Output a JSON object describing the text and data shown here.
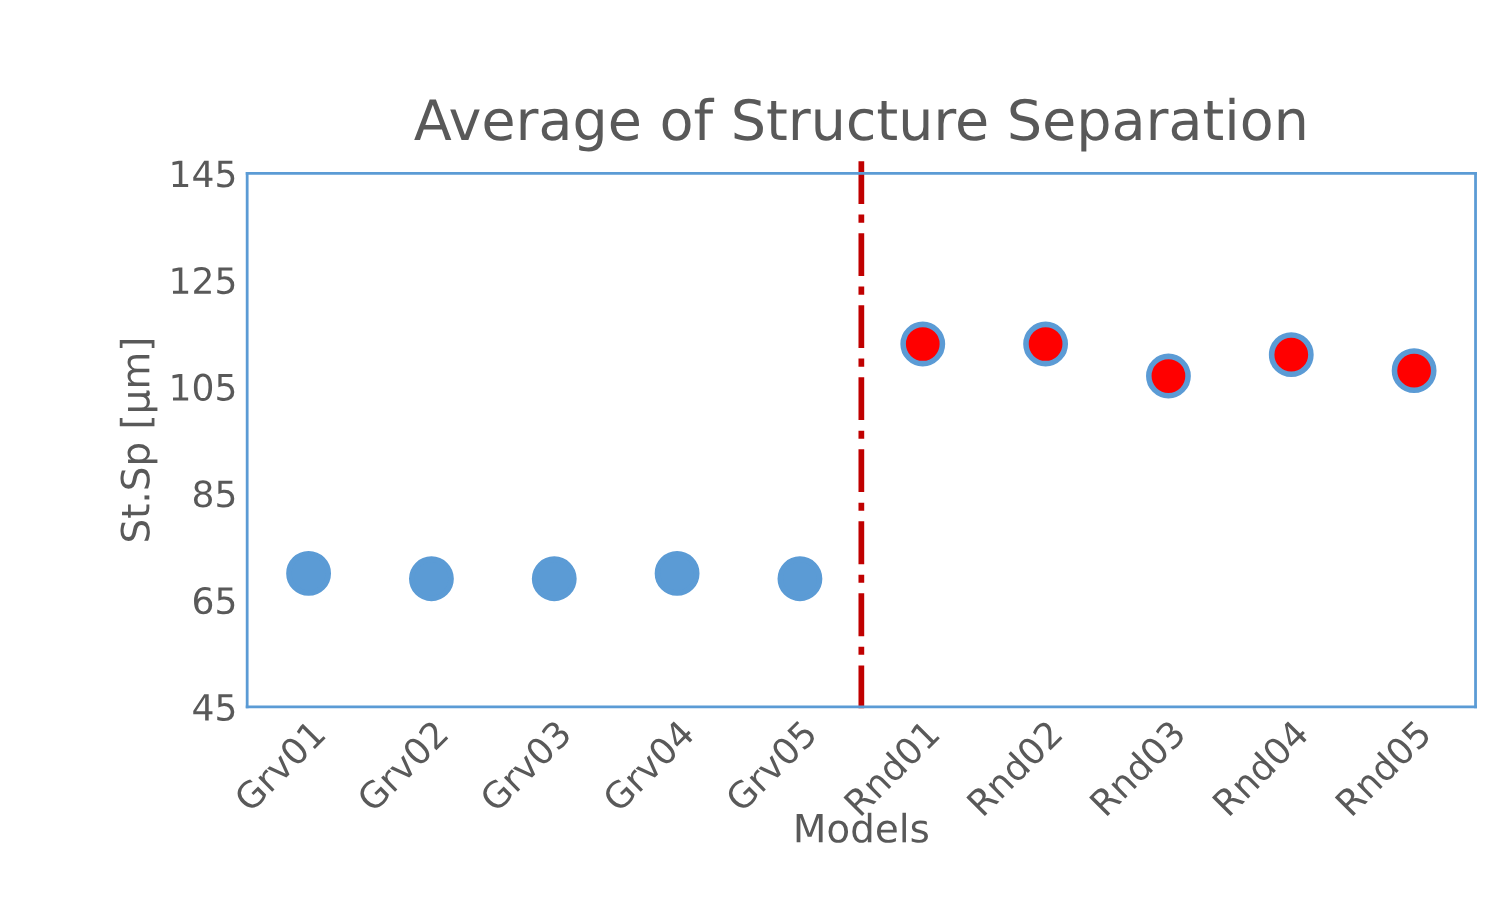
{
  "chart_data": {
    "type": "scatter",
    "title": "Average of Structure Separation",
    "xlabel": "Models",
    "ylabel": "St.Sp [µm]",
    "categories": [
      "Grv01",
      "Grv02",
      "Grv03",
      "Grv04",
      "Grv05",
      "Rnd01",
      "Rnd02",
      "Rnd03",
      "Rnd04",
      "Rnd05"
    ],
    "values": [
      70,
      69,
      69,
      70,
      69,
      113,
      113,
      107,
      111,
      108
    ],
    "colors": [
      "#5b9bd5",
      "#5b9bd5",
      "#5b9bd5",
      "#5b9bd5",
      "#5b9bd5",
      "#ff0000",
      "#ff0000",
      "#ff0000",
      "#ff0000",
      "#ff0000"
    ],
    "ylim": [
      45,
      145
    ],
    "yticks": [
      45,
      65,
      85,
      105,
      125,
      145
    ],
    "marker": "circle",
    "grid": false,
    "legend": false
  }
}
